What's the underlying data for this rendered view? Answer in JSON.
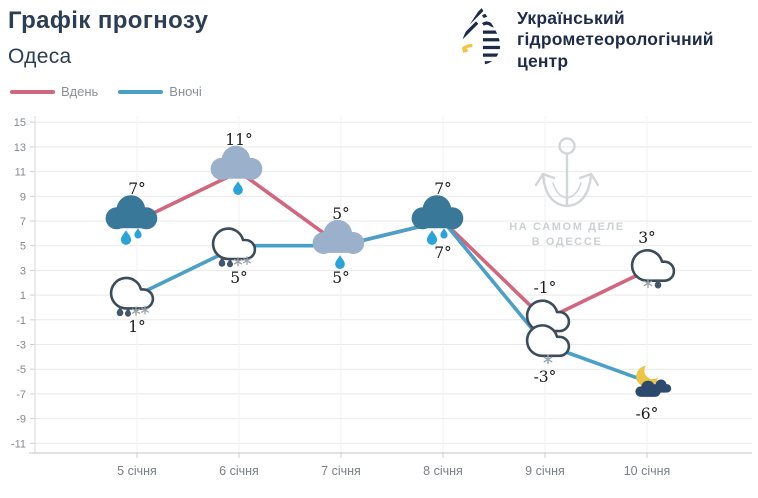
{
  "header": {
    "title": "Графік прогнозу",
    "city": "Одеса",
    "org_lines": [
      "Український",
      "гідрометеорологічний",
      "центр"
    ]
  },
  "legend": {
    "day": "Вдень",
    "night": "Вночі"
  },
  "watermark": {
    "line1": "НА САМОМ ДЕЛЕ",
    "line2": "В ОДЕССЕ"
  },
  "colors": {
    "day_line": "#d2667e",
    "night_line": "#4aa0c6",
    "dark_cloud": "#3a789a",
    "light_cloud": "#9bb0cb",
    "bright_drop": "#2aa3da",
    "dark_drop": "#44566b",
    "snowflake": "#9aa2ab",
    "moon": "#ecc544",
    "night_cloud": "#2d4a6e",
    "title_text": "#2c3e52",
    "brand_text": "#1f2c49"
  },
  "chart_data": {
    "type": "line",
    "title": "Графік прогнозу — Одеса",
    "categories": [
      "5 січня",
      "6 січня",
      "7 січня",
      "8 січня",
      "9 січня",
      "10 січня"
    ],
    "y_ticks": [
      15,
      13,
      11,
      9,
      7,
      5,
      3,
      1,
      -1,
      -3,
      -5,
      -7,
      -9,
      -11
    ],
    "ylim": [
      -11,
      15
    ],
    "grid": true,
    "legend_position": "top-left",
    "series": [
      {
        "name": "Вдень",
        "color": "#d2667e",
        "values": [
          7,
          11,
          5,
          7,
          -1,
          3
        ],
        "labels": [
          "7°",
          "11°",
          "5°",
          "7°",
          "-1°",
          "3°"
        ],
        "label_pos": "above",
        "icons": [
          "cloud-dark-rain",
          "cloud-light-rain",
          "cloud-light-rain",
          "cloud-dark-rain",
          "cloud-outline-snow",
          "cloud-outline-snow-rain"
        ]
      },
      {
        "name": "Вночі",
        "color": "#4aa0c6",
        "values": [
          1,
          5,
          5,
          7,
          -3,
          -6
        ],
        "labels": [
          "1°",
          "5°",
          "5°",
          "7°",
          "-3°",
          "-6°"
        ],
        "label_pos": "below",
        "icons": [
          "cloud-outline-rain-snow",
          "cloud-outline-rain-snow",
          "none",
          "none",
          "cloud-outline-snow",
          "moon-clouds"
        ]
      }
    ]
  }
}
